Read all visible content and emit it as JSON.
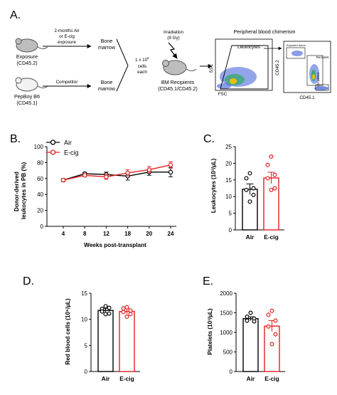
{
  "panels": {
    "A": "A.",
    "B": "B.",
    "C": "C.",
    "D": "D.",
    "E": "E."
  },
  "schematic": {
    "exposure_mouse": [
      "Exposure",
      "(CD45.2)"
    ],
    "exposure_step": [
      "2-months Air",
      "or E-cig",
      "exposure"
    ],
    "bone_marrow": [
      "Bone",
      "marrow"
    ],
    "competitor_mouse": [
      "PepBoy B6",
      "(CD45.1)"
    ],
    "competitor_label": "Competitor",
    "cells": [
      "1 x 10",
      "6",
      "cells",
      "each"
    ],
    "irradiation": [
      "Irradiation",
      "(8 Gy)"
    ],
    "recipients": [
      "BM Recipients",
      "(CD45.1/CD45.2)"
    ],
    "chimerism_title": "Peripheral blood chimerism",
    "leukocytes_gate": "Leukocytes",
    "ssc": "SSC",
    "fsc": "FSC",
    "cd45_2": "CD45.2",
    "cd45_1": "CD45.1",
    "exposed_donor": "Exposed donor",
    "recipient": "Recipient",
    "competitor_gate": "Competitor"
  },
  "colors": {
    "air": "#000000",
    "ecig": "#e02020",
    "flow_blue": "#3a5bd9"
  },
  "chart_data": [
    {
      "panel": "B",
      "type": "line",
      "x": [
        4,
        8,
        12,
        18,
        20,
        24
      ],
      "xlabel": "Weeks post-transplant",
      "ylabel": [
        "Donor-derived",
        "leukocytes in PB (%)"
      ],
      "ylim": [
        0,
        100
      ],
      "yticks": [
        0,
        20,
        40,
        60,
        80,
        100
      ],
      "legend": "top-left",
      "series": [
        {
          "name": "Air",
          "values": [
            58,
            66,
            65,
            63,
            68,
            68
          ],
          "err": [
            2,
            2,
            3,
            5,
            4,
            6
          ]
        },
        {
          "name": "E-cig",
          "values": [
            58,
            64,
            62,
            67,
            71,
            77
          ],
          "err": [
            2,
            2,
            3,
            4,
            4,
            4
          ]
        }
      ]
    },
    {
      "panel": "C",
      "type": "bar",
      "categories": [
        "Air",
        "E-cig"
      ],
      "values": [
        12.2,
        15.6
      ],
      "err": [
        1.6,
        1.7
      ],
      "points": [
        [
          17,
          15.5,
          12.5,
          12,
          10.5,
          8.5
        ],
        [
          22,
          19.5,
          16.5,
          15.5,
          12.5,
          12
        ]
      ],
      "ylabel": "Leukocytes (10³/µL)",
      "ylim": [
        0,
        25
      ],
      "yticks": [
        0,
        5,
        10,
        15,
        20,
        25
      ]
    },
    {
      "panel": "D",
      "type": "bar",
      "categories": [
        "Air",
        "E-cig"
      ],
      "values": [
        11.7,
        11.5
      ],
      "err": [
        0.4,
        0.5
      ],
      "points": [
        [
          12.5,
          12,
          12.2,
          11.5,
          11.1,
          11
        ],
        [
          12.3,
          12.1,
          11.7,
          11.4,
          11,
          10.5
        ]
      ],
      "ylabel": "Red blood cells (10⁶/µL)",
      "ylim": [
        0,
        15
      ],
      "yticks": [
        0,
        5,
        10,
        15
      ]
    },
    {
      "panel": "E",
      "type": "bar",
      "categories": [
        "Air",
        "E-cig"
      ],
      "values": [
        1350,
        1160
      ],
      "err": [
        50,
        140
      ],
      "points": [
        [
          1500,
          1400,
          1350,
          1300,
          1280
        ],
        [
          1550,
          1450,
          1300,
          1150,
          950,
          700
        ]
      ],
      "ylabel": "Platelets (10³/µL)",
      "ylim": [
        0,
        2000
      ],
      "yticks": [
        0,
        500,
        1000,
        1500,
        2000
      ]
    }
  ]
}
